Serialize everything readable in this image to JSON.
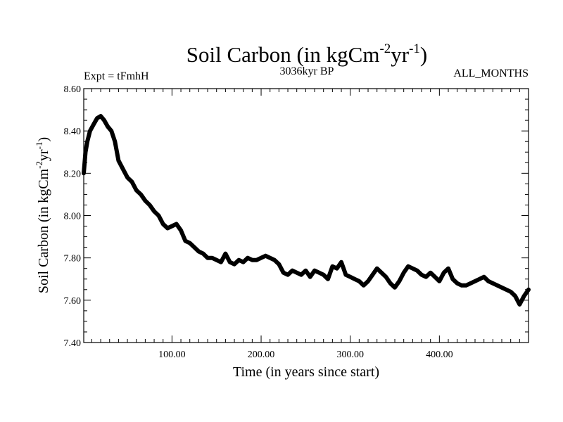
{
  "header": {
    "title_main": "Soil Carbon (in kgCm",
    "title_sup1": "-2",
    "title_mid": "yr",
    "title_sup2": "-1",
    "title_end": ")",
    "left_label": "Expt = tFmhH",
    "center_label": "3036kyr BP",
    "right_label": "ALL_MONTHS"
  },
  "chart_data": {
    "type": "line",
    "title": "Soil Carbon (in kgCm-2yr-1)",
    "xlabel": "Time (in years since start)",
    "ylabel": "Soil Carbon (in kgCm-2yr-1)",
    "ylabel_parts": {
      "main": "Soil Carbon (in kgCm",
      "sup1": "-2",
      "mid": "yr",
      "sup2": "-1",
      "end": ")"
    },
    "xlim": [
      1,
      500
    ],
    "ylim": [
      7.4,
      8.6
    ],
    "xticks": [
      100,
      200,
      300,
      400
    ],
    "xtick_labels": [
      "100.00",
      "200.00",
      "300.00",
      "400.00"
    ],
    "yticks": [
      7.4,
      7.6,
      7.8,
      8.0,
      8.2,
      8.4,
      8.6
    ],
    "ytick_labels": [
      "7.40",
      "7.60",
      "7.80",
      "8.00",
      "8.20",
      "8.40",
      "8.60"
    ],
    "series": [
      {
        "name": "tFmhH",
        "x": [
          1,
          3,
          5,
          8,
          12,
          16,
          20,
          24,
          28,
          32,
          36,
          40,
          45,
          50,
          55,
          60,
          65,
          70,
          75,
          80,
          85,
          90,
          95,
          100,
          105,
          110,
          115,
          120,
          125,
          130,
          135,
          140,
          145,
          150,
          155,
          160,
          165,
          170,
          175,
          180,
          185,
          190,
          195,
          200,
          205,
          210,
          215,
          220,
          225,
          230,
          235,
          240,
          245,
          250,
          255,
          260,
          265,
          270,
          275,
          280,
          285,
          290,
          295,
          300,
          305,
          310,
          315,
          320,
          325,
          330,
          335,
          340,
          345,
          350,
          355,
          360,
          365,
          370,
          375,
          380,
          385,
          390,
          395,
          400,
          405,
          410,
          415,
          420,
          425,
          430,
          435,
          440,
          445,
          450,
          455,
          460,
          465,
          470,
          475,
          480,
          485,
          490,
          495,
          500
        ],
        "values": [
          8.2,
          8.3,
          8.35,
          8.4,
          8.43,
          8.46,
          8.47,
          8.45,
          8.42,
          8.4,
          8.35,
          8.26,
          8.22,
          8.18,
          8.16,
          8.12,
          8.1,
          8.07,
          8.05,
          8.02,
          8.0,
          7.96,
          7.94,
          7.95,
          7.96,
          7.93,
          7.88,
          7.87,
          7.85,
          7.83,
          7.82,
          7.8,
          7.8,
          7.79,
          7.78,
          7.82,
          7.78,
          7.77,
          7.79,
          7.78,
          7.8,
          7.79,
          7.79,
          7.8,
          7.81,
          7.8,
          7.79,
          7.77,
          7.73,
          7.72,
          7.74,
          7.73,
          7.72,
          7.74,
          7.71,
          7.74,
          7.73,
          7.72,
          7.7,
          7.76,
          7.75,
          7.78,
          7.72,
          7.71,
          7.7,
          7.69,
          7.67,
          7.69,
          7.72,
          7.75,
          7.73,
          7.71,
          7.68,
          7.66,
          7.69,
          7.73,
          7.76,
          7.75,
          7.74,
          7.72,
          7.71,
          7.73,
          7.71,
          7.69,
          7.73,
          7.75,
          7.7,
          7.68,
          7.67,
          7.67,
          7.68,
          7.69,
          7.7,
          7.71,
          7.69,
          7.68,
          7.67,
          7.66,
          7.65,
          7.64,
          7.62,
          7.58,
          7.62,
          7.65
        ]
      }
    ]
  }
}
